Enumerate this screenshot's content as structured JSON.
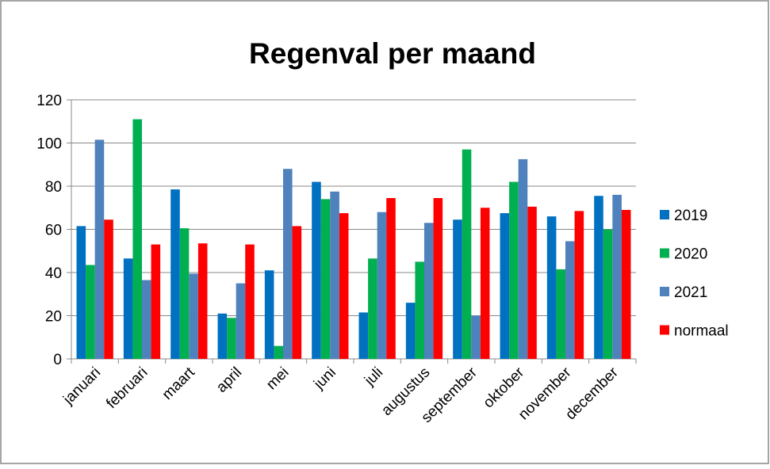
{
  "chart_data": {
    "type": "bar",
    "title": "Regenval per maand",
    "categories": [
      "januari",
      "februari",
      "maart",
      "april",
      "mei",
      "juni",
      "juli",
      "augustus",
      "september",
      "oktober",
      "november",
      "december"
    ],
    "series": [
      {
        "name": "2019",
        "color": "#0070c0",
        "values": [
          61.5,
          46.5,
          78.5,
          21,
          41,
          82,
          21.5,
          26,
          64.5,
          67.5,
          66,
          75.5
        ]
      },
      {
        "name": "2020",
        "color": "#00b050",
        "values": [
          43.5,
          111,
          60.5,
          19,
          6,
          74,
          46.5,
          45,
          97,
          82,
          41.5,
          60
        ]
      },
      {
        "name": "2021",
        "color": "#4f81bd",
        "values": [
          101.5,
          36.5,
          39.5,
          35,
          88,
          77.5,
          68,
          63,
          20,
          92.5,
          54.5,
          76
        ]
      },
      {
        "name": "normaal",
        "color": "#ff0000",
        "values": [
          64.5,
          53,
          53.5,
          53,
          61.5,
          67.5,
          74.5,
          74.5,
          70,
          70.5,
          68.5,
          69
        ]
      }
    ],
    "ylim": [
      0,
      120
    ],
    "yticks": [
      0,
      20,
      40,
      60,
      80,
      100,
      120
    ],
    "grid": true,
    "legend": "right"
  }
}
